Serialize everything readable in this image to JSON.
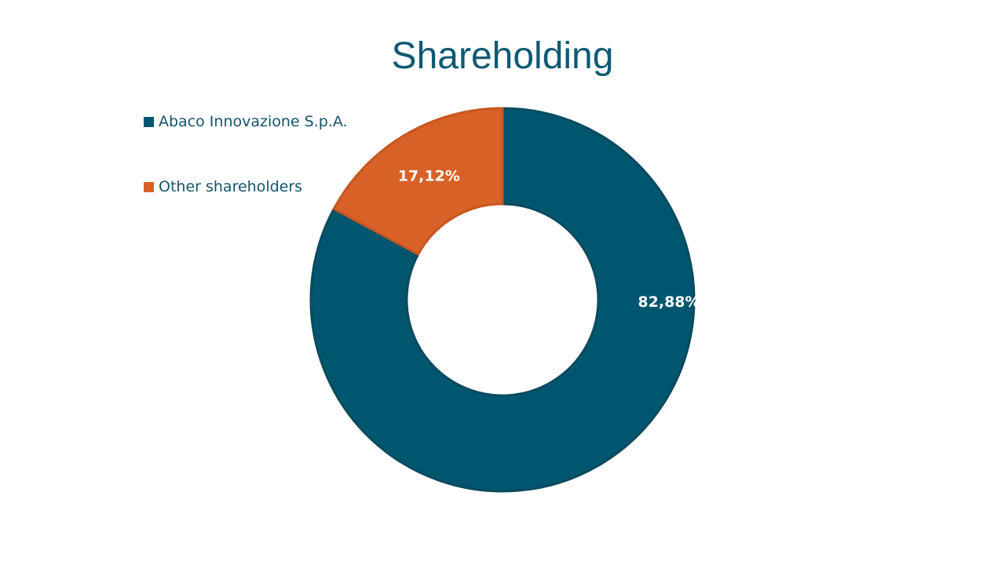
{
  "chart_data": {
    "type": "pie",
    "title": "Shareholding",
    "categories": [
      "Abaco Innovazione S.p.A.",
      "Other shareholders"
    ],
    "values": [
      82.88,
      17.12
    ],
    "data_labels": [
      "82,88%",
      "17,12%"
    ],
    "colors": [
      "#00566f",
      "#d86127"
    ],
    "donut": true,
    "legend_position": "top-left"
  }
}
